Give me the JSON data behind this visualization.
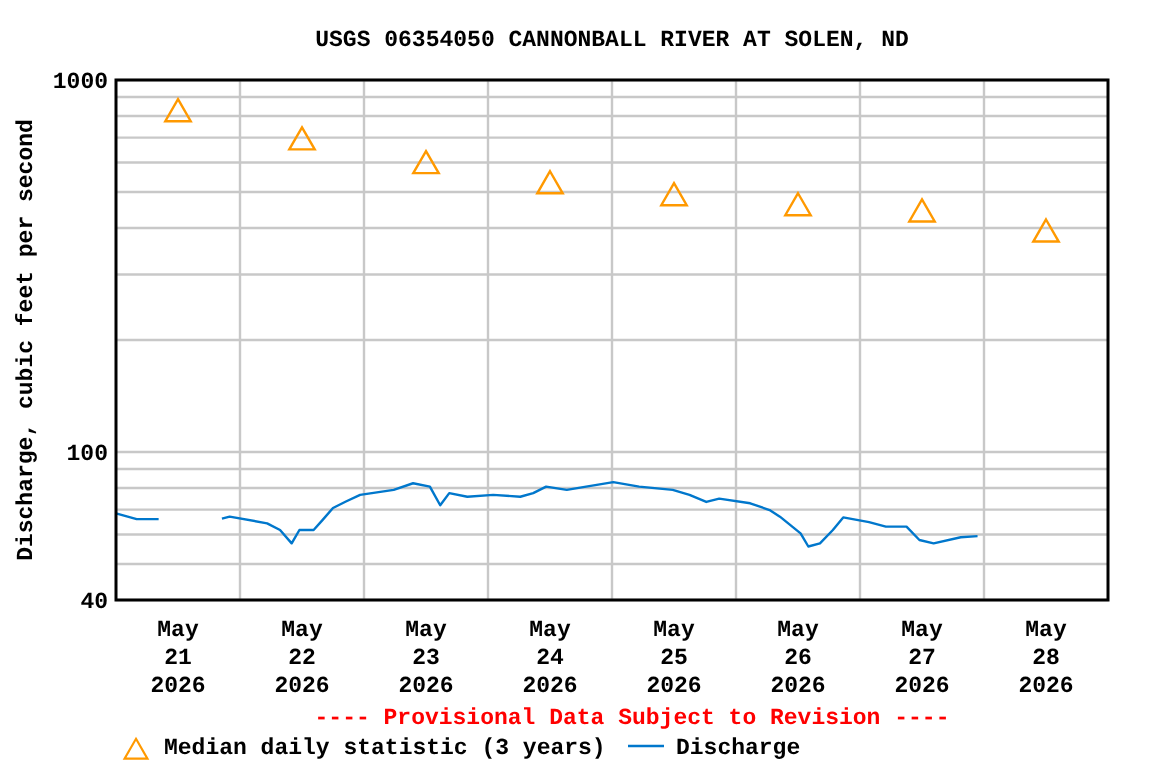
{
  "chart_data": {
    "type": "line",
    "title": "USGS 06354050 CANNONBALL RIVER AT SOLEN, ND",
    "ylabel": "Discharge, cubic feet per second",
    "annotations": [
      "---- Provisional Data Subject to Revision ----"
    ],
    "log": true,
    "grid": true,
    "legend": "bottom",
    "xlim": [
      "2026-05-21T00:00",
      "2026-05-29T00:00"
    ],
    "xticks": [
      {
        "value": "2026-05-21T12:00",
        "label": "May 21 2026"
      },
      {
        "value": "2026-05-22T00:00",
        "label": null
      },
      {
        "value": "2026-05-22T12:00",
        "label": "May 22 2026"
      },
      {
        "value": "2026-05-23T00:00",
        "label": null
      },
      {
        "value": "2026-05-23T12:00",
        "label": "May 23 2026"
      },
      {
        "value": "2026-05-24T00:00",
        "label": null
      },
      {
        "value": "2026-05-24T12:00",
        "label": "May 24 2026"
      },
      {
        "value": "2026-05-25T00:00",
        "label": null
      },
      {
        "value": "2026-05-25T12:00",
        "label": "May 25 2026"
      },
      {
        "value": "2026-05-26T00:00",
        "label": null
      },
      {
        "value": "2026-05-26T12:00",
        "label": "May 26 2026"
      },
      {
        "value": "2026-05-27T00:00",
        "label": null
      },
      {
        "value": "2026-05-27T12:00",
        "label": "May 27 2026"
      },
      {
        "value": "2026-05-28T00:00",
        "label": null
      },
      {
        "value": "2026-05-28T12:00",
        "label": "May 28 2026"
      }
    ],
    "ylim": [
      40,
      1000
    ],
    "yticks": [
      40,
      {
        "value": 50,
        "label": null
      },
      {
        "value": 60,
        "label": null
      },
      {
        "value": 70,
        "label": null
      },
      {
        "value": 80,
        "label": null
      },
      {
        "value": 90,
        "label": null
      },
      100,
      {
        "value": 200,
        "label": null
      },
      {
        "value": 300,
        "label": null
      },
      {
        "value": 400,
        "label": null
      },
      {
        "value": 500,
        "label": null
      },
      {
        "value": 600,
        "label": null
      },
      {
        "value": 700,
        "label": null
      },
      {
        "value": 800,
        "label": null
      },
      {
        "value": 900,
        "label": null
      },
      1000
    ],
    "series": [
      {
        "name": "Median daily statistic (3 years)",
        "type": "scatter",
        "marker": "triangle",
        "color": "#ff9900",
        "x": [
          "2026-05-21T12:00",
          "2026-05-22T12:00",
          "2026-05-23T12:00",
          "2026-05-24T12:00",
          "2026-05-25T12:00",
          "2026-05-26T12:00",
          "2026-05-27T12:00",
          "2026-05-28T12:00"
        ],
        "values": [
          811,
          681,
          588,
          519,
          482,
          453,
          436,
          385
        ]
      },
      {
        "name": "Discharge",
        "color": "#0077cc",
        "line_style": "solid",
        "x": [
          "2026-05-21T00:00",
          "2026-05-21T04:00",
          "2026-05-21T08:15",
          "2026-05-21T14:00",
          "2026-05-21T20:30",
          "2026-05-21T22:00",
          "2026-05-22T05:15",
          "2026-05-22T07:45",
          "2026-05-22T10:00",
          "2026-05-22T11:30",
          "2026-05-22T14:15",
          "2026-05-22T16:00",
          "2026-05-22T18:00",
          "2026-05-22T20:30",
          "2026-05-22T23:15",
          "2026-05-23T05:45",
          "2026-05-23T09:30",
          "2026-05-23T12:45",
          "2026-05-23T14:45",
          "2026-05-23T16:30",
          "2026-05-23T20:00",
          "2026-05-24T01:00",
          "2026-05-24T06:15",
          "2026-05-24T08:45",
          "2026-05-24T11:15",
          "2026-05-24T15:15",
          "2026-05-24T19:00",
          "2026-05-25T00:15",
          "2026-05-25T05:15",
          "2026-05-25T11:45",
          "2026-05-25T15:00",
          "2026-05-25T18:15",
          "2026-05-25T20:45",
          "2026-05-26T02:45",
          "2026-05-26T06:30",
          "2026-05-26T08:30",
          "2026-05-26T12:30",
          "2026-05-26T14:00",
          "2026-05-26T16:15",
          "2026-05-26T18:45",
          "2026-05-26T20:45",
          "2026-05-27T01:45",
          "2026-05-27T05:00",
          "2026-05-27T09:00",
          "2026-05-27T11:30",
          "2026-05-27T14:15",
          "2026-05-27T19:30",
          "2026-05-27T22:45"
        ],
        "values": [
          68.4,
          66,
          66,
          null,
          66.2,
          67,
          64.3,
          61.7,
          56.8,
          61.7,
          61.7,
          65.7,
          70.7,
          73.6,
          76.7,
          79.1,
          82.4,
          80.7,
          71.9,
          77.5,
          75.8,
          76.7,
          75.8,
          77.5,
          80.7,
          79.1,
          80.7,
          83,
          80.7,
          79.1,
          76.7,
          73.4,
          74.9,
          72.8,
          69.8,
          67,
          60.4,
          55.7,
          56.8,
          61.7,
          66.7,
          64.8,
          63,
          63,
          58,
          56.8,
          59,
          59.4
        ]
      }
    ]
  }
}
